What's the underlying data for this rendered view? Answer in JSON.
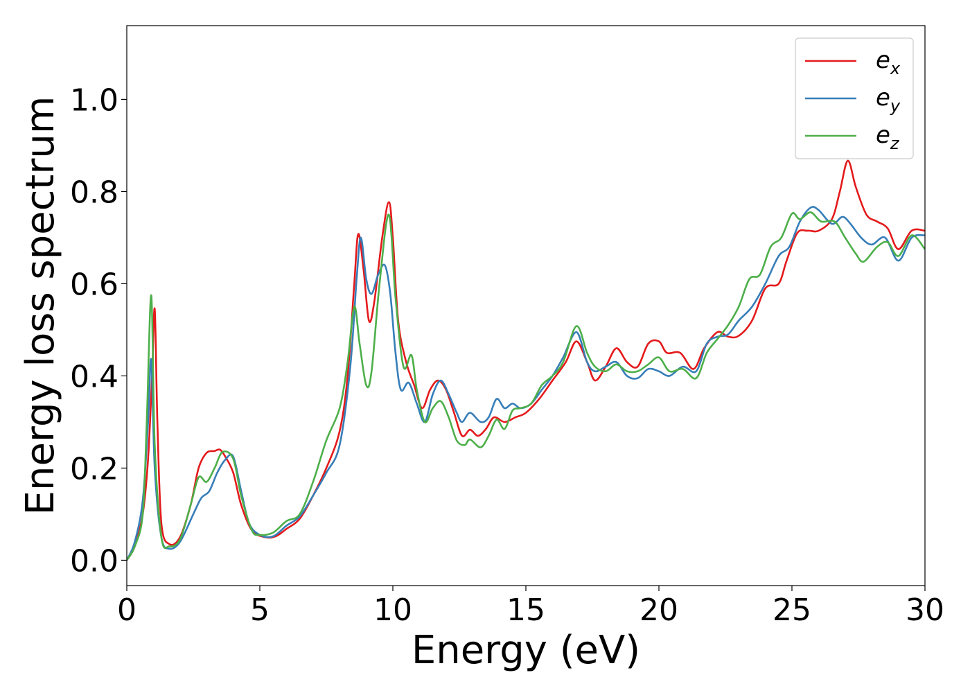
{
  "chart_data": {
    "type": "line",
    "title": "",
    "xlabel": "Energy (eV)",
    "ylabel": "Energy loss spectrum",
    "xlim": [
      0,
      30
    ],
    "ylim": [
      -0.055,
      1.16
    ],
    "xticks": [
      0,
      5,
      10,
      15,
      20,
      25,
      30
    ],
    "xtick_labels": [
      "0",
      "5",
      "10",
      "15",
      "20",
      "25",
      "30"
    ],
    "yticks": [
      0.0,
      0.2,
      0.4,
      0.6,
      0.8,
      1.0
    ],
    "ytick_labels": [
      "0.0",
      "0.2",
      "0.4",
      "0.6",
      "0.8",
      "1.0"
    ],
    "grid": false,
    "legend_position": "top-right",
    "series": [
      {
        "name": "e_x",
        "label_base": "e",
        "label_sub": "x",
        "color": "#e41a1c",
        "points": [
          [
            0,
            0
          ],
          [
            0.3,
            0.03
          ],
          [
            0.6,
            0.1
          ],
          [
            0.8,
            0.22
          ],
          [
            0.95,
            0.4
          ],
          [
            1.05,
            0.545
          ],
          [
            1.15,
            0.3
          ],
          [
            1.3,
            0.08
          ],
          [
            1.6,
            0.035
          ],
          [
            2.0,
            0.05
          ],
          [
            2.4,
            0.12
          ],
          [
            2.7,
            0.2
          ],
          [
            3.0,
            0.233
          ],
          [
            3.3,
            0.237
          ],
          [
            3.5,
            0.24
          ],
          [
            3.7,
            0.225
          ],
          [
            4.0,
            0.19
          ],
          [
            4.3,
            0.12
          ],
          [
            4.7,
            0.065
          ],
          [
            5.2,
            0.05
          ],
          [
            5.6,
            0.052
          ],
          [
            6.0,
            0.068
          ],
          [
            6.5,
            0.09
          ],
          [
            7.0,
            0.14
          ],
          [
            7.5,
            0.2
          ],
          [
            8.0,
            0.28
          ],
          [
            8.3,
            0.4
          ],
          [
            8.55,
            0.6
          ],
          [
            8.7,
            0.708
          ],
          [
            8.9,
            0.63
          ],
          [
            9.1,
            0.52
          ],
          [
            9.3,
            0.56
          ],
          [
            9.6,
            0.7
          ],
          [
            9.85,
            0.777
          ],
          [
            10.0,
            0.7
          ],
          [
            10.2,
            0.52
          ],
          [
            10.5,
            0.43
          ],
          [
            10.8,
            0.38
          ],
          [
            11.1,
            0.33
          ],
          [
            11.4,
            0.37
          ],
          [
            11.7,
            0.39
          ],
          [
            12.0,
            0.37
          ],
          [
            12.3,
            0.32
          ],
          [
            12.6,
            0.27
          ],
          [
            12.9,
            0.283
          ],
          [
            13.2,
            0.27
          ],
          [
            13.5,
            0.285
          ],
          [
            13.8,
            0.31
          ],
          [
            14.2,
            0.3
          ],
          [
            14.6,
            0.31
          ],
          [
            15.0,
            0.32
          ],
          [
            15.5,
            0.35
          ],
          [
            16.0,
            0.39
          ],
          [
            16.5,
            0.43
          ],
          [
            16.9,
            0.475
          ],
          [
            17.3,
            0.43
          ],
          [
            17.6,
            0.39
          ],
          [
            18.0,
            0.42
          ],
          [
            18.4,
            0.46
          ],
          [
            18.8,
            0.43
          ],
          [
            19.2,
            0.42
          ],
          [
            19.6,
            0.47
          ],
          [
            20.0,
            0.475
          ],
          [
            20.3,
            0.45
          ],
          [
            20.8,
            0.45
          ],
          [
            21.3,
            0.415
          ],
          [
            21.7,
            0.46
          ],
          [
            22.2,
            0.495
          ],
          [
            22.6,
            0.485
          ],
          [
            23.0,
            0.487
          ],
          [
            23.5,
            0.52
          ],
          [
            24.0,
            0.59
          ],
          [
            24.5,
            0.6
          ],
          [
            24.8,
            0.65
          ],
          [
            25.2,
            0.71
          ],
          [
            25.6,
            0.715
          ],
          [
            26.0,
            0.715
          ],
          [
            26.5,
            0.74
          ],
          [
            26.8,
            0.8
          ],
          [
            27.1,
            0.867
          ],
          [
            27.4,
            0.81
          ],
          [
            27.8,
            0.75
          ],
          [
            28.2,
            0.735
          ],
          [
            28.6,
            0.72
          ],
          [
            29.0,
            0.675
          ],
          [
            29.5,
            0.715
          ],
          [
            30.0,
            0.715
          ]
        ]
      },
      {
        "name": "e_y",
        "label_base": "e",
        "label_sub": "y",
        "color": "#377eb8",
        "points": [
          [
            0,
            0
          ],
          [
            0.3,
            0.04
          ],
          [
            0.6,
            0.13
          ],
          [
            0.8,
            0.3
          ],
          [
            0.92,
            0.435
          ],
          [
            1.05,
            0.2
          ],
          [
            1.3,
            0.05
          ],
          [
            1.6,
            0.025
          ],
          [
            2.0,
            0.04
          ],
          [
            2.5,
            0.1
          ],
          [
            2.8,
            0.135
          ],
          [
            3.1,
            0.15
          ],
          [
            3.4,
            0.19
          ],
          [
            3.7,
            0.218
          ],
          [
            4.0,
            0.225
          ],
          [
            4.3,
            0.15
          ],
          [
            4.6,
            0.08
          ],
          [
            5.0,
            0.055
          ],
          [
            5.5,
            0.052
          ],
          [
            6.0,
            0.075
          ],
          [
            6.5,
            0.095
          ],
          [
            7.0,
            0.14
          ],
          [
            7.5,
            0.19
          ],
          [
            8.0,
            0.25
          ],
          [
            8.4,
            0.42
          ],
          [
            8.65,
            0.62
          ],
          [
            8.8,
            0.7
          ],
          [
            9.0,
            0.61
          ],
          [
            9.2,
            0.578
          ],
          [
            9.45,
            0.62
          ],
          [
            9.7,
            0.64
          ],
          [
            9.9,
            0.58
          ],
          [
            10.1,
            0.45
          ],
          [
            10.3,
            0.37
          ],
          [
            10.6,
            0.385
          ],
          [
            10.9,
            0.34
          ],
          [
            11.2,
            0.3
          ],
          [
            11.5,
            0.36
          ],
          [
            11.8,
            0.39
          ],
          [
            12.1,
            0.36
          ],
          [
            12.4,
            0.32
          ],
          [
            12.6,
            0.3
          ],
          [
            12.9,
            0.32
          ],
          [
            13.3,
            0.3
          ],
          [
            13.6,
            0.31
          ],
          [
            13.9,
            0.35
          ],
          [
            14.2,
            0.33
          ],
          [
            14.5,
            0.34
          ],
          [
            14.8,
            0.33
          ],
          [
            15.2,
            0.34
          ],
          [
            15.6,
            0.37
          ],
          [
            16.0,
            0.4
          ],
          [
            16.4,
            0.44
          ],
          [
            16.9,
            0.495
          ],
          [
            17.3,
            0.43
          ],
          [
            17.6,
            0.41
          ],
          [
            18.0,
            0.42
          ],
          [
            18.4,
            0.43
          ],
          [
            18.8,
            0.4
          ],
          [
            19.2,
            0.395
          ],
          [
            19.6,
            0.415
          ],
          [
            20.0,
            0.41
          ],
          [
            20.4,
            0.4
          ],
          [
            20.9,
            0.42
          ],
          [
            21.4,
            0.41
          ],
          [
            21.8,
            0.47
          ],
          [
            22.2,
            0.485
          ],
          [
            22.6,
            0.49
          ],
          [
            23.0,
            0.52
          ],
          [
            23.5,
            0.55
          ],
          [
            24.0,
            0.6
          ],
          [
            24.5,
            0.66
          ],
          [
            24.9,
            0.68
          ],
          [
            25.3,
            0.735
          ],
          [
            25.7,
            0.765
          ],
          [
            26.0,
            0.76
          ],
          [
            26.5,
            0.73
          ],
          [
            26.9,
            0.745
          ],
          [
            27.2,
            0.73
          ],
          [
            27.6,
            0.7
          ],
          [
            28.0,
            0.685
          ],
          [
            28.5,
            0.7
          ],
          [
            29.0,
            0.65
          ],
          [
            29.5,
            0.7
          ],
          [
            30.0,
            0.705
          ]
        ]
      },
      {
        "name": "e_z",
        "label_base": "e",
        "label_sub": "z",
        "color": "#4daf4a",
        "points": [
          [
            0,
            0
          ],
          [
            0.3,
            0.03
          ],
          [
            0.6,
            0.1
          ],
          [
            0.75,
            0.3
          ],
          [
            0.92,
            0.575
          ],
          [
            1.05,
            0.25
          ],
          [
            1.3,
            0.05
          ],
          [
            1.6,
            0.03
          ],
          [
            2.0,
            0.045
          ],
          [
            2.4,
            0.12
          ],
          [
            2.7,
            0.18
          ],
          [
            3.0,
            0.17
          ],
          [
            3.3,
            0.2
          ],
          [
            3.6,
            0.235
          ],
          [
            4.0,
            0.22
          ],
          [
            4.3,
            0.14
          ],
          [
            4.7,
            0.065
          ],
          [
            5.0,
            0.055
          ],
          [
            5.5,
            0.06
          ],
          [
            6.0,
            0.085
          ],
          [
            6.5,
            0.1
          ],
          [
            7.0,
            0.17
          ],
          [
            7.5,
            0.26
          ],
          [
            8.0,
            0.33
          ],
          [
            8.3,
            0.43
          ],
          [
            8.55,
            0.55
          ],
          [
            8.75,
            0.47
          ],
          [
            9.0,
            0.38
          ],
          [
            9.2,
            0.41
          ],
          [
            9.5,
            0.6
          ],
          [
            9.85,
            0.75
          ],
          [
            10.1,
            0.57
          ],
          [
            10.4,
            0.42
          ],
          [
            10.7,
            0.445
          ],
          [
            10.9,
            0.37
          ],
          [
            11.2,
            0.3
          ],
          [
            11.5,
            0.33
          ],
          [
            11.8,
            0.345
          ],
          [
            12.1,
            0.31
          ],
          [
            12.4,
            0.26
          ],
          [
            12.7,
            0.25
          ],
          [
            12.9,
            0.262
          ],
          [
            13.3,
            0.245
          ],
          [
            13.6,
            0.27
          ],
          [
            13.9,
            0.305
          ],
          [
            14.2,
            0.285
          ],
          [
            14.5,
            0.325
          ],
          [
            14.8,
            0.33
          ],
          [
            15.2,
            0.34
          ],
          [
            15.6,
            0.38
          ],
          [
            16.0,
            0.4
          ],
          [
            16.4,
            0.43
          ],
          [
            16.9,
            0.508
          ],
          [
            17.3,
            0.45
          ],
          [
            17.6,
            0.42
          ],
          [
            18.0,
            0.41
          ],
          [
            18.4,
            0.425
          ],
          [
            18.8,
            0.41
          ],
          [
            19.2,
            0.41
          ],
          [
            19.6,
            0.425
          ],
          [
            20.0,
            0.44
          ],
          [
            20.4,
            0.41
          ],
          [
            20.9,
            0.415
          ],
          [
            21.4,
            0.395
          ],
          [
            21.8,
            0.45
          ],
          [
            22.2,
            0.48
          ],
          [
            22.6,
            0.51
          ],
          [
            23.0,
            0.55
          ],
          [
            23.4,
            0.61
          ],
          [
            23.8,
            0.62
          ],
          [
            24.2,
            0.68
          ],
          [
            24.6,
            0.7
          ],
          [
            25.0,
            0.752
          ],
          [
            25.3,
            0.74
          ],
          [
            25.7,
            0.755
          ],
          [
            26.1,
            0.735
          ],
          [
            26.6,
            0.735
          ],
          [
            27.0,
            0.7
          ],
          [
            27.4,
            0.665
          ],
          [
            27.7,
            0.648
          ],
          [
            28.2,
            0.68
          ],
          [
            28.6,
            0.69
          ],
          [
            29.0,
            0.66
          ],
          [
            29.5,
            0.705
          ],
          [
            30.0,
            0.675
          ]
        ]
      }
    ]
  }
}
